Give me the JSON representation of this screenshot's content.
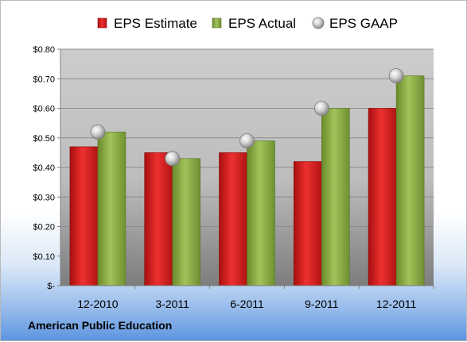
{
  "chart_data": {
    "type": "bar",
    "categories": [
      "12-2010",
      "3-2011",
      "6-2011",
      "9-2011",
      "12-2011"
    ],
    "series": [
      {
        "name": "EPS Estimate",
        "kind": "bar",
        "color": "#e02020",
        "values": [
          0.47,
          0.45,
          0.45,
          0.42,
          0.6
        ]
      },
      {
        "name": "EPS Actual",
        "kind": "bar",
        "color": "#8fb449",
        "values": [
          0.52,
          0.43,
          0.49,
          0.6,
          0.71
        ]
      },
      {
        "name": "EPS GAAP",
        "kind": "marker",
        "color": "#c8c8c8",
        "values": [
          0.52,
          0.43,
          0.49,
          0.6,
          0.71
        ]
      }
    ],
    "yticks": [
      "$-",
      "$0.10",
      "$0.20",
      "$0.30",
      "$0.40",
      "$0.50",
      "$0.60",
      "$0.70",
      "$0.80"
    ],
    "ylim": [
      0,
      0.8
    ],
    "grid": true,
    "legend": "top"
  },
  "footer": "American Public Education"
}
